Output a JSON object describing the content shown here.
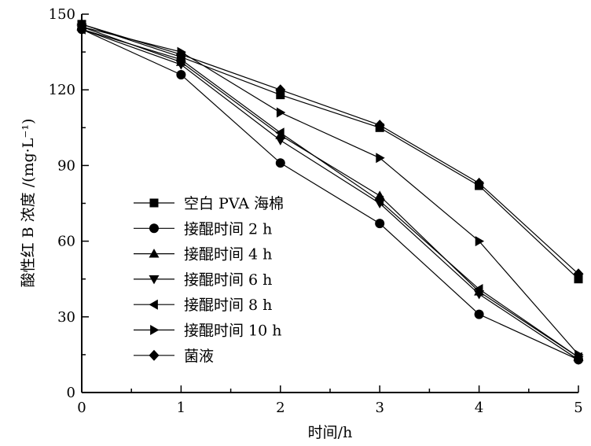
{
  "chart_data": {
    "type": "line",
    "title": "",
    "xlabel": "时间/h",
    "ylabel": "酸性红 B 浓度 /(mg·L⁻¹)",
    "xlim": [
      0,
      5
    ],
    "ylim": [
      0,
      150
    ],
    "x_ticks": [
      "0",
      "1",
      "2",
      "3",
      "4",
      "5"
    ],
    "y_ticks": [
      "0",
      "30",
      "60",
      "90",
      "120",
      "150"
    ],
    "grid": false,
    "legend_position": "center-left",
    "x": [
      0,
      1,
      2,
      3,
      4,
      5
    ],
    "series": [
      {
        "name": "空白 PVA 海棉",
        "marker": "square",
        "values": [
          146,
          133,
          118,
          105,
          82,
          45
        ]
      },
      {
        "name": "接醌时间 2 h",
        "marker": "circle",
        "values": [
          144,
          126,
          91,
          67,
          31,
          13
        ]
      },
      {
        "name": "接醌时间 4 h",
        "marker": "triangle-up",
        "values": [
          145,
          131,
          102,
          78,
          40,
          14
        ]
      },
      {
        "name": "接醌时间 6 h",
        "marker": "triangle-down",
        "values": [
          144,
          130,
          100,
          75,
          39,
          13
        ]
      },
      {
        "name": "接醌时间 8 h",
        "marker": "triangle-left",
        "values": [
          144,
          132,
          103,
          76,
          41,
          14
        ]
      },
      {
        "name": "接醌时间 10 h",
        "marker": "triangle-right",
        "values": [
          145,
          135,
          111,
          93,
          60,
          15
        ]
      },
      {
        "name": "菌液",
        "marker": "diamond",
        "values": [
          146,
          134,
          120,
          106,
          83,
          47
        ]
      }
    ]
  }
}
